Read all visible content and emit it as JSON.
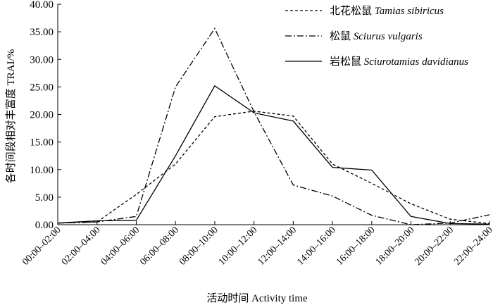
{
  "chart_data": {
    "type": "line",
    "xlabel": "活动时间 Activity time",
    "ylabel": "各时间段相对丰富度 TRAI/%",
    "ylim": [
      0,
      40
    ],
    "yticks": [
      "0.00",
      "5.00",
      "10.00",
      "15.00",
      "20.00",
      "25.00",
      "30.00",
      "35.00",
      "40.00"
    ],
    "categories": [
      "00:00–02:00",
      "02:00–04:00",
      "04:00–06:00",
      "06:00–08:00",
      "08:00–10:00",
      "10:00–12:00",
      "12:00–14:00",
      "14:00–16:00",
      "16:00–18:00",
      "18:00–20:00",
      "20:00–22:00",
      "22:00–24:00"
    ],
    "grid": false,
    "legend_position": "top-right",
    "series": [
      {
        "name_cn": "北花松鼠",
        "name_latin": "Tamias sibiricus",
        "dash": "dashed",
        "values": [
          0.3,
          0.5,
          5.5,
          11.0,
          19.6,
          20.6,
          19.7,
          11.0,
          7.5,
          3.8,
          1.0,
          0.2
        ]
      },
      {
        "name_cn": "松鼠",
        "name_latin": "Sciurus vulgaris",
        "dash": "dashdot",
        "values": [
          0.3,
          0.5,
          1.5,
          25.0,
          35.6,
          20.5,
          7.2,
          5.2,
          1.7,
          0.0,
          0.3,
          1.8
        ]
      },
      {
        "name_cn": "岩松鼠",
        "name_latin": "Sciurotamias davidianus",
        "dash": "solid",
        "values": [
          0.3,
          0.7,
          0.8,
          12.5,
          25.2,
          20.3,
          18.8,
          10.4,
          9.9,
          1.5,
          0.2,
          0.1
        ]
      }
    ]
  }
}
